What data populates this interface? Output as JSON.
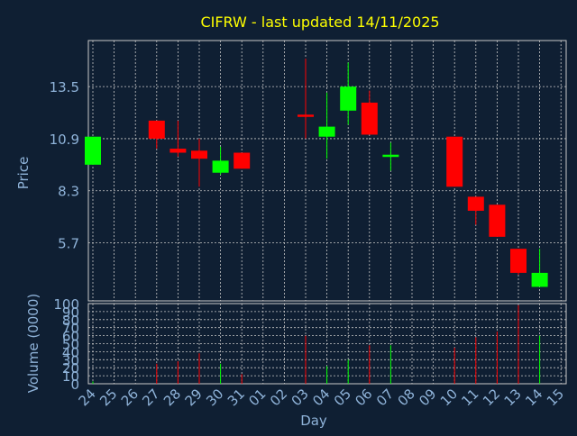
{
  "title": "CIFRW - last updated 14/11/2025",
  "colors": {
    "background": "#0f1f33",
    "title": "#ffff00",
    "axis_text": "#8fb3d9",
    "grid": "#c8c8c8",
    "up": "#00ff00",
    "down": "#ff0000"
  },
  "chart_data": [
    {
      "type": "candlestick",
      "ylabel": "Price",
      "y_ticks": [
        5.7,
        8.3,
        10.9,
        13.5
      ],
      "ylim": [
        2.8,
        15.8
      ],
      "grid": true,
      "x_ticks": [
        "24",
        "25",
        "26",
        "27",
        "28",
        "29",
        "30",
        "31",
        "01",
        "02",
        "03",
        "04",
        "05",
        "06",
        "07",
        "08",
        "09",
        "10",
        "11",
        "12",
        "13",
        "14",
        "15"
      ],
      "candles": [
        {
          "day": "24",
          "open": 9.6,
          "close": 11.0,
          "high": 11.0,
          "low": 9.6
        },
        {
          "day": "27",
          "open": 11.8,
          "close": 10.9,
          "high": 11.8,
          "low": 10.4
        },
        {
          "day": "28",
          "open": 10.4,
          "close": 10.2,
          "high": 11.8,
          "low": 10.0
        },
        {
          "day": "29",
          "open": 10.3,
          "close": 9.9,
          "high": 10.9,
          "low": 8.5
        },
        {
          "day": "30",
          "open": 9.2,
          "close": 9.8,
          "high": 10.5,
          "low": 9.1
        },
        {
          "day": "31",
          "open": 10.2,
          "close": 9.4,
          "high": 10.2,
          "low": 9.4
        },
        {
          "day": "03",
          "open": 12.1,
          "close": 12.0,
          "high": 14.9,
          "low": 10.9
        },
        {
          "day": "04",
          "open": 11.0,
          "close": 11.5,
          "high": 13.2,
          "low": 9.9
        },
        {
          "day": "05",
          "open": 12.3,
          "close": 13.5,
          "high": 14.7,
          "low": 11.6
        },
        {
          "day": "06",
          "open": 12.7,
          "close": 11.1,
          "high": 13.3,
          "low": 11.1
        },
        {
          "day": "07",
          "open": 10.1,
          "close": 10.1,
          "high": 10.7,
          "low": 9.3
        },
        {
          "day": "10",
          "open": 11.0,
          "close": 8.5,
          "high": 11.0,
          "low": 8.5
        },
        {
          "day": "11",
          "open": 8.0,
          "close": 7.3,
          "high": 8.0,
          "low": 6.6
        },
        {
          "day": "12",
          "open": 7.6,
          "close": 6.0,
          "high": 7.6,
          "low": 6.0
        },
        {
          "day": "13",
          "open": 5.4,
          "close": 4.2,
          "high": 5.4,
          "low": 4.1
        },
        {
          "day": "14",
          "open": 3.5,
          "close": 4.2,
          "high": 5.4,
          "low": 3.5
        }
      ]
    },
    {
      "type": "bar",
      "ylabel": "Volume (0000)",
      "xlabel": "Day",
      "y_ticks": [
        0,
        10,
        20,
        30,
        40,
        50,
        60,
        70,
        80,
        90,
        100
      ],
      "ylim": [
        0,
        100
      ],
      "grid": true,
      "bars": [
        {
          "day": "24",
          "value": 3,
          "color": "up"
        },
        {
          "day": "27",
          "value": 25,
          "color": "down"
        },
        {
          "day": "28",
          "value": 28,
          "color": "down"
        },
        {
          "day": "29",
          "value": 38,
          "color": "down"
        },
        {
          "day": "30",
          "value": 25,
          "color": "up"
        },
        {
          "day": "31",
          "value": 12,
          "color": "down"
        },
        {
          "day": "03",
          "value": 60,
          "color": "down"
        },
        {
          "day": "04",
          "value": 22,
          "color": "up"
        },
        {
          "day": "05",
          "value": 30,
          "color": "up"
        },
        {
          "day": "06",
          "value": 48,
          "color": "down"
        },
        {
          "day": "07",
          "value": 48,
          "color": "up"
        },
        {
          "day": "10",
          "value": 45,
          "color": "down"
        },
        {
          "day": "11",
          "value": 58,
          "color": "down"
        },
        {
          "day": "12",
          "value": 65,
          "color": "down"
        },
        {
          "day": "13",
          "value": 98,
          "color": "down"
        },
        {
          "day": "14",
          "value": 60,
          "color": "up"
        }
      ]
    }
  ]
}
